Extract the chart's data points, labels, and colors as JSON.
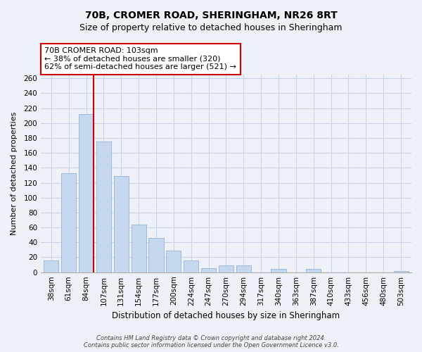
{
  "title": "70B, CROMER ROAD, SHERINGHAM, NR26 8RT",
  "subtitle": "Size of property relative to detached houses in Sheringham",
  "xlabel": "Distribution of detached houses by size in Sheringham",
  "ylabel": "Number of detached properties",
  "bar_labels": [
    "38sqm",
    "61sqm",
    "84sqm",
    "107sqm",
    "131sqm",
    "154sqm",
    "177sqm",
    "200sqm",
    "224sqm",
    "247sqm",
    "270sqm",
    "294sqm",
    "317sqm",
    "340sqm",
    "363sqm",
    "387sqm",
    "410sqm",
    "433sqm",
    "456sqm",
    "480sqm",
    "503sqm"
  ],
  "bar_values": [
    16,
    133,
    212,
    175,
    129,
    64,
    46,
    29,
    16,
    5,
    9,
    9,
    0,
    4,
    0,
    4,
    0,
    0,
    0,
    0,
    2
  ],
  "bar_color": "#c5d8f0",
  "bar_edge_color": "#a0b8d8",
  "vline_index": 2,
  "vline_side": "right",
  "vline_color": "#cc0000",
  "annotation_text": "70B CROMER ROAD: 103sqm\n← 38% of detached houses are smaller (320)\n62% of semi-detached houses are larger (521) →",
  "annotation_box_color": "#ffffff",
  "annotation_box_edge": "#cc0000",
  "ylim": [
    0,
    265
  ],
  "yticks": [
    0,
    20,
    40,
    60,
    80,
    100,
    120,
    140,
    160,
    180,
    200,
    220,
    240,
    260
  ],
  "footer_line1": "Contains HM Land Registry data © Crown copyright and database right 2024.",
  "footer_line2": "Contains public sector information licensed under the Open Government Licence v3.0.",
  "bg_color": "#eef2f8",
  "grid_color": "#c8d4e8",
  "title_fontsize": 10,
  "subtitle_fontsize": 9,
  "xlabel_fontsize": 8.5,
  "ylabel_fontsize": 8,
  "tick_fontsize": 7.5,
  "annotation_fontsize": 8,
  "footer_fontsize": 6
}
